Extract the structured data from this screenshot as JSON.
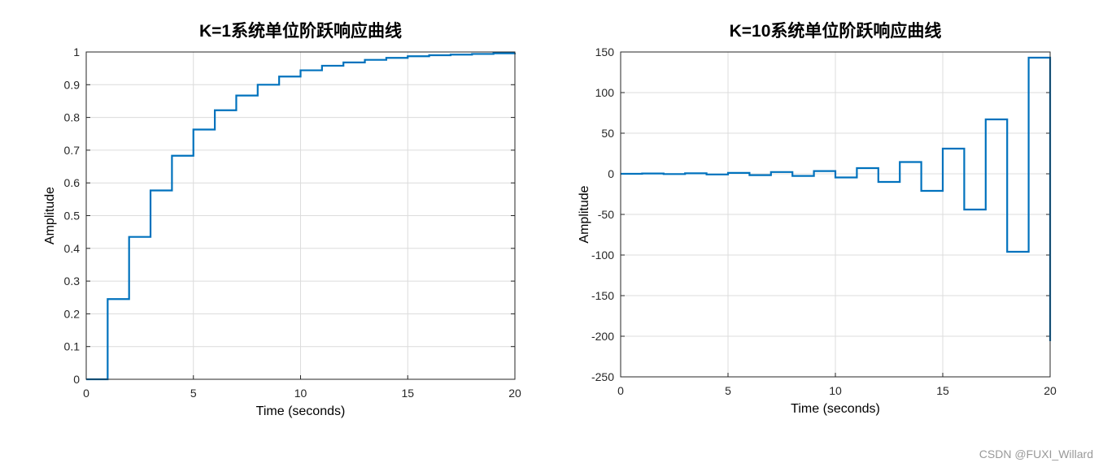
{
  "chart_data": [
    {
      "type": "line",
      "step": true,
      "title": "K=1系统单位阶跃响应曲线",
      "xlabel": "Time (seconds)",
      "ylabel": "Amplitude",
      "xlim": [
        0,
        20
      ],
      "ylim": [
        0,
        1
      ],
      "grid": true,
      "xticks": [
        0,
        5,
        10,
        15,
        20
      ],
      "xtick_labels": [
        "0",
        "5",
        "10",
        "15",
        "20"
      ],
      "yticks": [
        0,
        0.1,
        0.2,
        0.3,
        0.4,
        0.5,
        0.6,
        0.7,
        0.8,
        0.9,
        1
      ],
      "ytick_labels": [
        "0",
        "0.1",
        "0.2",
        "0.3",
        "0.4",
        "0.5",
        "0.6",
        "0.7",
        "0.8",
        "0.9",
        "1"
      ],
      "x": [
        0,
        1,
        2,
        3,
        4,
        5,
        6,
        7,
        8,
        9,
        10,
        11,
        12,
        13,
        14,
        15,
        16,
        17,
        18,
        19,
        20
      ],
      "y": [
        0,
        0.245,
        0.435,
        0.577,
        0.683,
        0.763,
        0.822,
        0.867,
        0.9,
        0.925,
        0.944,
        0.958,
        0.968,
        0.976,
        0.982,
        0.987,
        0.99,
        0.992,
        0.994,
        0.996,
        0.997
      ],
      "color": "#0072BD",
      "hline": 1
    },
    {
      "type": "line",
      "step": true,
      "title": "K=10系统单位阶跃响应曲线",
      "xlabel": "Time (seconds)",
      "ylabel": "Amplitude",
      "xlim": [
        0,
        20
      ],
      "ylim": [
        -250,
        150
      ],
      "grid": true,
      "xticks": [
        0,
        5,
        10,
        15,
        20
      ],
      "xtick_labels": [
        "0",
        "5",
        "10",
        "15",
        "20"
      ],
      "yticks": [
        -250,
        -200,
        -150,
        -100,
        -50,
        0,
        50,
        100,
        150
      ],
      "ytick_labels": [
        "-250",
        "-200",
        "-150",
        "-100",
        "-50",
        "0",
        "50",
        "100",
        "150"
      ],
      "x": [
        0,
        1,
        2,
        3,
        4,
        5,
        6,
        7,
        8,
        9,
        10,
        11,
        12,
        13,
        14,
        15,
        16,
        17,
        18,
        19,
        20
      ],
      "y": [
        0,
        0.4,
        -0.3,
        0.6,
        -0.8,
        1.1,
        -1.6,
        2.2,
        -2.6,
        3.4,
        -4.5,
        7,
        -10,
        14.5,
        -21,
        31,
        -44,
        67,
        -96,
        143,
        -206
      ],
      "color": "#0072BD"
    }
  ],
  "watermark": "CSDN @FUXI_Willard"
}
